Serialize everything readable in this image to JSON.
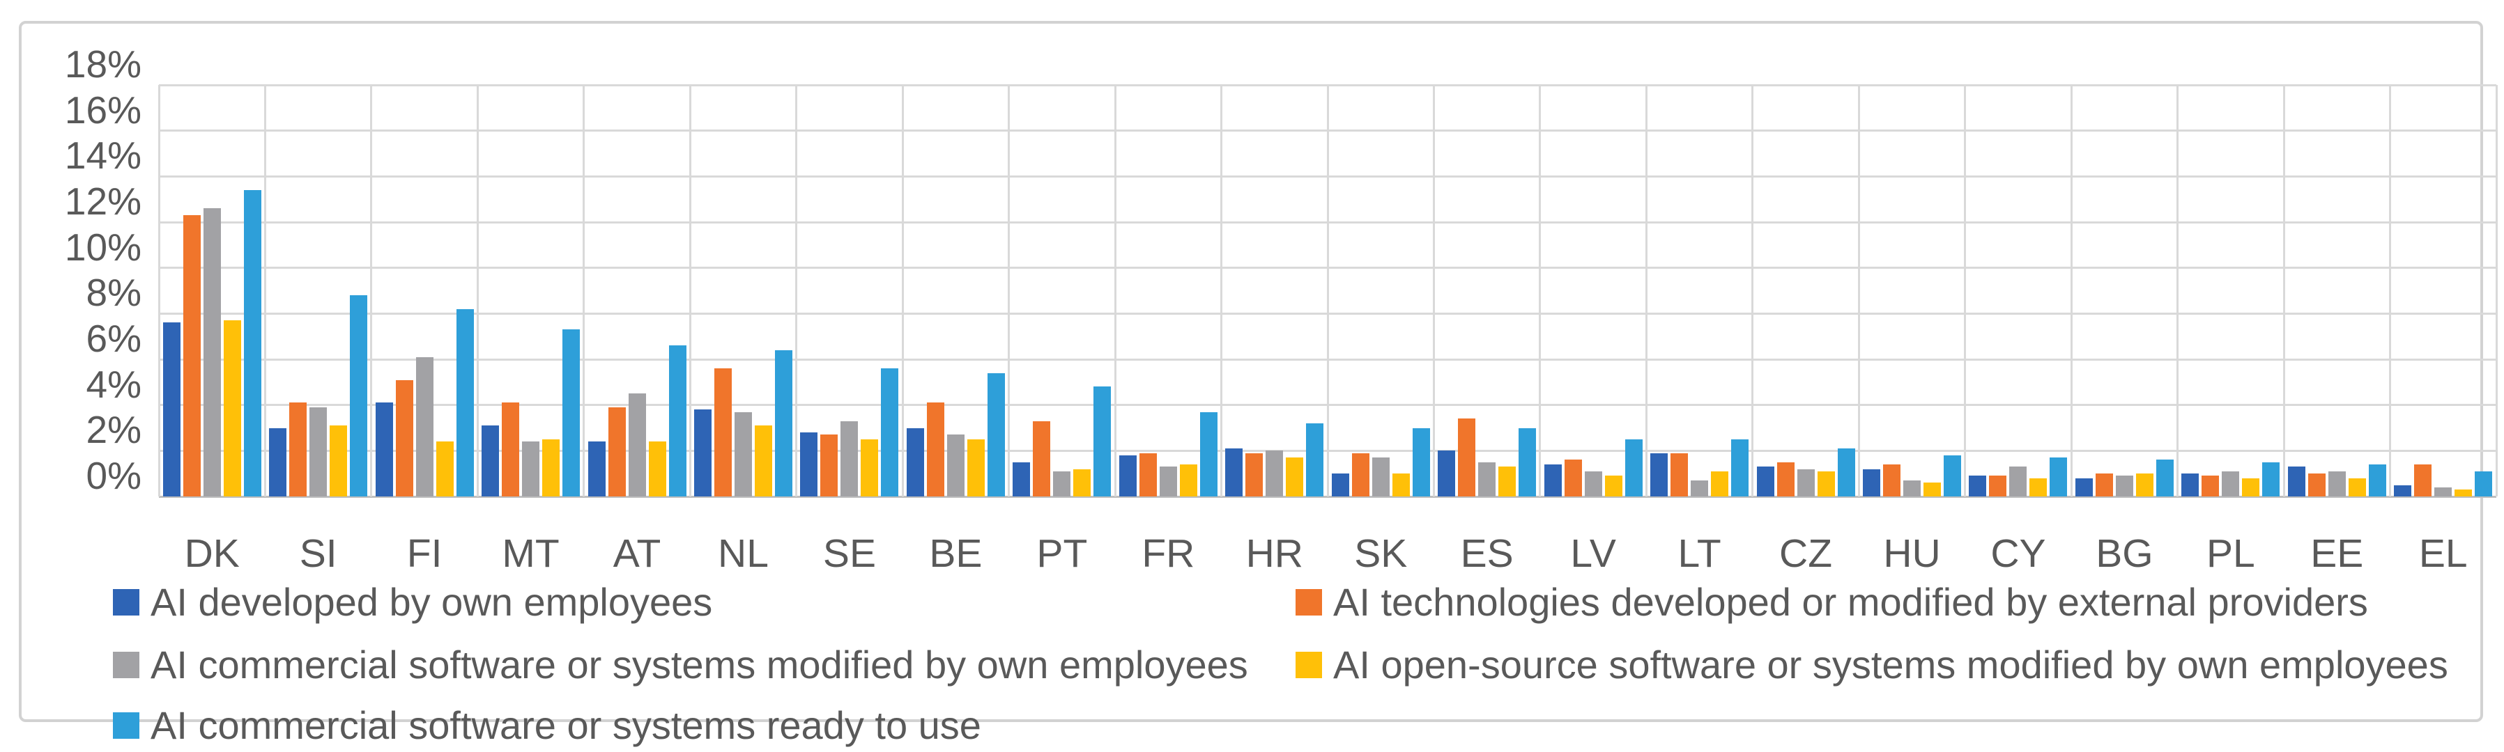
{
  "chart_data": {
    "type": "bar",
    "title": "",
    "categories": [
      "DK",
      "SI",
      "FI",
      "MT",
      "AT",
      "NL",
      "SE",
      "BE",
      "PT",
      "FR",
      "HR",
      "SK",
      "ES",
      "LV",
      "LT",
      "CZ",
      "HU",
      "CY",
      "BG",
      "PL",
      "EE",
      "EL"
    ],
    "series": [
      {
        "name": "AI developed by own employees",
        "color": "#2e64b5",
        "values": [
          7.6,
          3.0,
          4.1,
          3.1,
          2.4,
          3.8,
          2.8,
          3.0,
          1.5,
          1.8,
          2.1,
          1.0,
          2.0,
          1.4,
          1.9,
          1.3,
          1.2,
          0.9,
          0.8,
          1.0,
          1.3,
          0.5
        ]
      },
      {
        "name": "AI technologies developed or modified by external providers",
        "color": "#f0752b",
        "values": [
          12.3,
          4.1,
          5.1,
          4.1,
          3.9,
          5.6,
          2.7,
          4.1,
          3.3,
          1.9,
          1.9,
          1.9,
          3.4,
          1.6,
          1.9,
          1.5,
          1.4,
          0.9,
          1.0,
          0.9,
          1.0,
          1.4
        ]
      },
      {
        "name": "AI commercial software or systems modified by own employees",
        "color": "#a2a2a5",
        "values": [
          12.6,
          3.9,
          6.1,
          2.4,
          4.5,
          3.7,
          3.3,
          2.7,
          1.1,
          1.3,
          2.0,
          1.7,
          1.5,
          1.1,
          0.7,
          1.2,
          0.7,
          1.3,
          0.9,
          1.1,
          1.1,
          0.4
        ]
      },
      {
        "name": "AI open-source software or systems modified by own employees",
        "color": "#ffc008",
        "values": [
          7.7,
          3.1,
          2.4,
          2.5,
          2.4,
          3.1,
          2.5,
          2.5,
          1.2,
          1.4,
          1.7,
          1.0,
          1.3,
          0.9,
          1.1,
          1.1,
          0.6,
          0.8,
          1.0,
          0.8,
          0.8,
          0.3
        ]
      },
      {
        "name": "AI commercial software or systems ready to use",
        "color": "#2e9fd9",
        "values": [
          13.4,
          8.8,
          8.2,
          7.3,
          6.6,
          6.4,
          5.6,
          5.4,
          4.8,
          3.7,
          3.2,
          3.0,
          3.0,
          2.5,
          2.5,
          2.1,
          1.8,
          1.7,
          1.6,
          1.5,
          1.4,
          1.1
        ]
      }
    ],
    "y_ticks": [
      "18%",
      "16%",
      "14%",
      "12%",
      "10%",
      "8%",
      "6%",
      "4%",
      "2%",
      "0%"
    ],
    "ylim": [
      0,
      18
    ],
    "grid": true,
    "legend_position": "bottom"
  },
  "style": {
    "gridline_color": "#d9d9d9",
    "axis_line_color": "#bfbfbf",
    "text_color": "#595959",
    "frame_border_color": "#d2d2d2"
  }
}
